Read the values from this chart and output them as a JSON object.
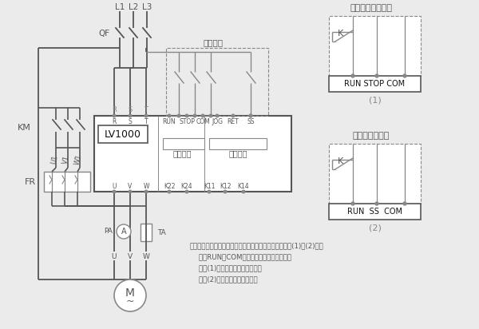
{
  "bg_color": "#ebebeb",
  "line_color": "#888888",
  "dark_line": "#555555",
  "title1": "二线控制自由停车",
  "title2": "二线控制软停车",
  "label1": "(1)",
  "label2": "(2)",
  "note_line1": "注：软起动器的外控起动、停止也可采用二线控制《见图(1)和(2)》，",
  "note_line2": "    利用RUN和COM的闭合和断开来控制起停。",
  "note_line3": "    按图(1)接线，停车为自由停车。",
  "note_line4": "    按图(2)接线，停车为软停车。",
  "run_stop_com": "RUN STOP COM",
  "run_ss_com": "RUN  SS  COM",
  "lv1000_label": "LV1000",
  "bypass_label": "旁路控制",
  "fault_label": "故障输出",
  "three_wire": "三线控制",
  "km_label": "KM",
  "fr_label": "FR",
  "pa_label": "PA",
  "ta_label": "TA",
  "qf_label": "QF",
  "k_label": "K"
}
